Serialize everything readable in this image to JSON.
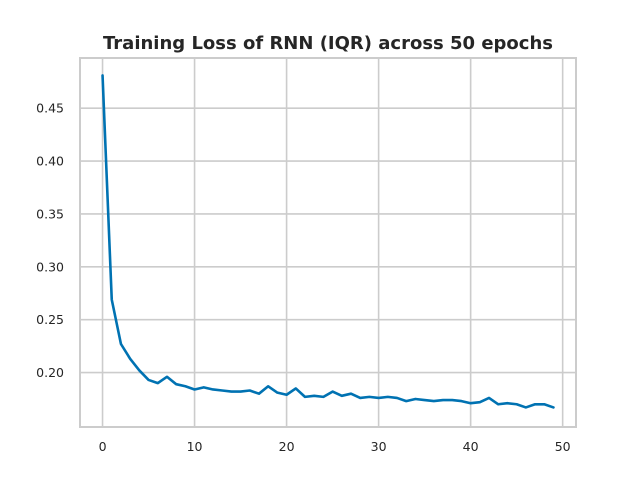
{
  "chart_data": {
    "type": "line",
    "title": "Training Loss of RNN (IQR) across 50 epochs",
    "xlabel": "",
    "ylabel": "",
    "xlim": [
      -2.45,
      51.45
    ],
    "ylim": [
      0.1485,
      0.4975
    ],
    "x_ticks": [
      0,
      10,
      20,
      30,
      40,
      50
    ],
    "y_ticks": [
      0.2,
      0.25,
      0.3,
      0.35,
      0.4,
      0.45
    ],
    "grid": true,
    "series": [
      {
        "color": "#0072b2",
        "x": [
          0,
          1,
          2,
          3,
          4,
          5,
          6,
          7,
          8,
          9,
          10,
          11,
          12,
          13,
          14,
          15,
          16,
          17,
          18,
          19,
          20,
          21,
          22,
          23,
          24,
          25,
          26,
          27,
          28,
          29,
          30,
          31,
          32,
          33,
          34,
          35,
          36,
          37,
          38,
          39,
          40,
          41,
          42,
          43,
          44,
          45,
          46,
          47,
          48,
          49
        ],
        "values": [
          0.481,
          0.269,
          0.227,
          0.213,
          0.202,
          0.193,
          0.19,
          0.196,
          0.189,
          0.187,
          0.184,
          0.186,
          0.184,
          0.183,
          0.182,
          0.182,
          0.183,
          0.18,
          0.187,
          0.181,
          0.179,
          0.185,
          0.177,
          0.178,
          0.177,
          0.182,
          0.178,
          0.18,
          0.176,
          0.177,
          0.176,
          0.177,
          0.176,
          0.173,
          0.175,
          0.174,
          0.173,
          0.174,
          0.174,
          0.173,
          0.171,
          0.172,
          0.176,
          0.17,
          0.171,
          0.17,
          0.167,
          0.17,
          0.17,
          0.167
        ]
      }
    ]
  }
}
